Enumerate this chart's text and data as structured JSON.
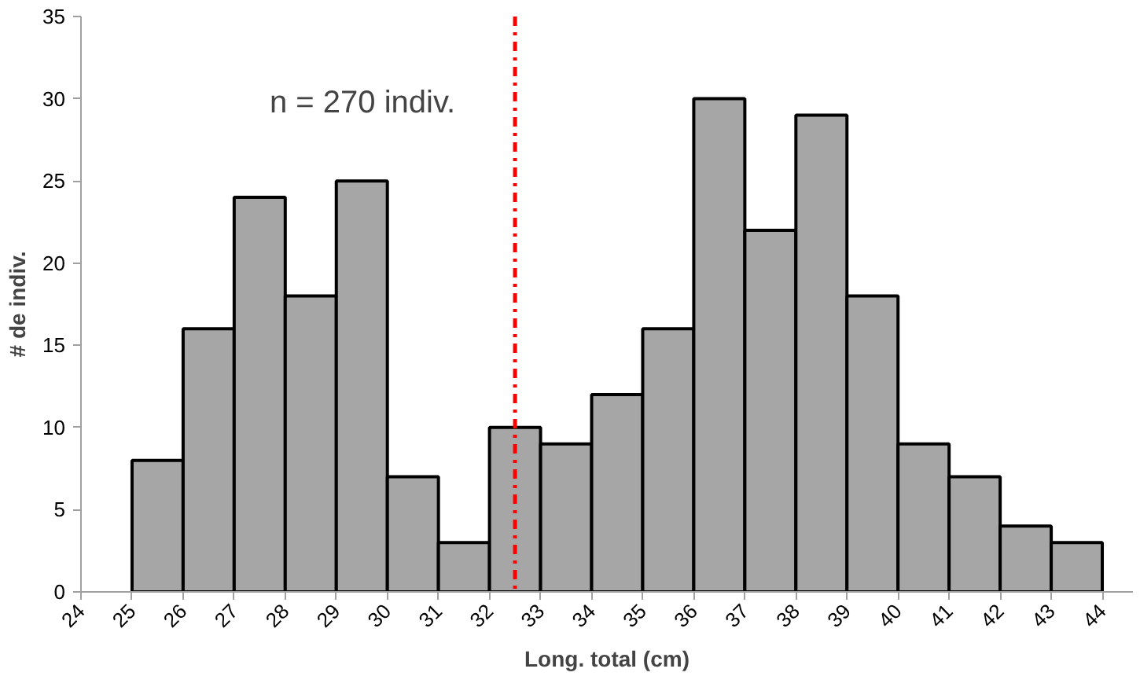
{
  "chart_data": {
    "type": "histogram",
    "xlabel": "Long. total (cm)",
    "ylabel": "# de indiv.",
    "bins": [
      25,
      26,
      27,
      28,
      29,
      30,
      31,
      32,
      33,
      34,
      35,
      36,
      37,
      38,
      39,
      40,
      41,
      42,
      43,
      44
    ],
    "values": [
      8,
      16,
      24,
      18,
      25,
      7,
      3,
      10,
      9,
      12,
      16,
      30,
      22,
      29,
      18,
      9,
      7,
      4,
      3
    ],
    "color": "#a6a6a6",
    "xlim": [
      24,
      44.6
    ],
    "xticks": [
      24,
      25,
      26,
      27,
      28,
      29,
      30,
      31,
      32,
      33,
      34,
      35,
      36,
      37,
      38,
      39,
      40,
      41,
      42,
      43,
      44
    ],
    "ylim": [
      0,
      35
    ],
    "yticks": [
      0,
      5,
      10,
      15,
      20,
      25,
      30,
      35
    ],
    "ref_lines": [
      {
        "axis": "x",
        "value": 32.5,
        "label": null,
        "color": "#ff0000",
        "line_style": "dashdot"
      }
    ],
    "annotations": [
      "n = 270 indiv."
    ],
    "grid": false
  }
}
